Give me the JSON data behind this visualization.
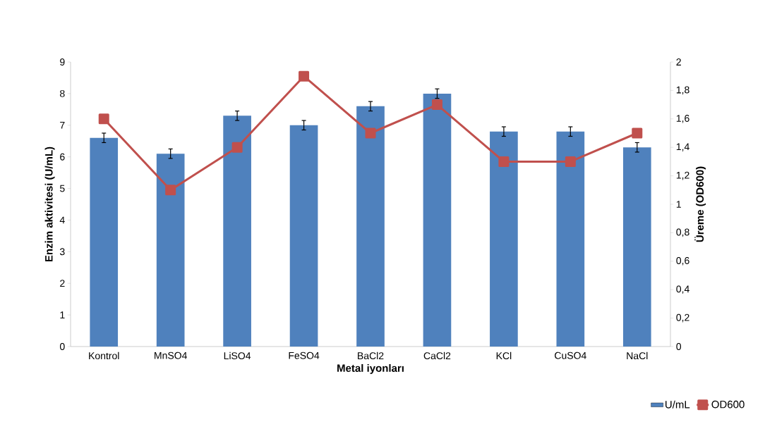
{
  "chart_data": {
    "type": "bar",
    "xlabel": "Metal iyonları",
    "ylabel": "Enzim aktivitesi (U/mL)",
    "y2label": "Üreme (OD600)",
    "categories": [
      "Kontrol",
      "MnSO4",
      "LiSO4",
      "FeSO4",
      "BaCl2",
      "CaCl2",
      "KCl",
      "CuSO4",
      "NaCl"
    ],
    "series": [
      {
        "name": "U/mL",
        "color": "#4f81bd",
        "values": [
          6.6,
          6.1,
          7.3,
          7.0,
          7.6,
          8.0,
          6.8,
          6.8,
          6.3
        ],
        "errors": [
          0.15,
          0.15,
          0.15,
          0.15,
          0.15,
          0.15,
          0.15,
          0.15,
          0.15
        ]
      },
      {
        "name": "OD600",
        "type": "line",
        "axis": "y2",
        "color": "#c0504d",
        "marker": "square",
        "values": [
          1.6,
          1.1,
          1.4,
          1.9,
          1.5,
          1.7,
          1.3,
          1.3,
          1.5
        ]
      }
    ],
    "ylim": [
      0,
      9
    ],
    "yticks": [
      0,
      1,
      2,
      3,
      4,
      5,
      6,
      7,
      8,
      9
    ],
    "y2lim": [
      0,
      2
    ],
    "y2ticks": [
      0,
      {
        "value": 0.2,
        "label": "0,2"
      },
      {
        "value": 0.4,
        "label": "0,4"
      },
      {
        "value": 0.6,
        "label": "0,6"
      },
      {
        "value": 0.8,
        "label": "0,8"
      },
      1,
      {
        "value": 1.2,
        "label": "1,2"
      },
      {
        "value": 1.4,
        "label": "1,4"
      },
      {
        "value": 1.6,
        "label": "1,6"
      },
      {
        "value": 1.8,
        "label": "1,8"
      },
      2
    ],
    "grid": false,
    "legend": "bottom right"
  }
}
